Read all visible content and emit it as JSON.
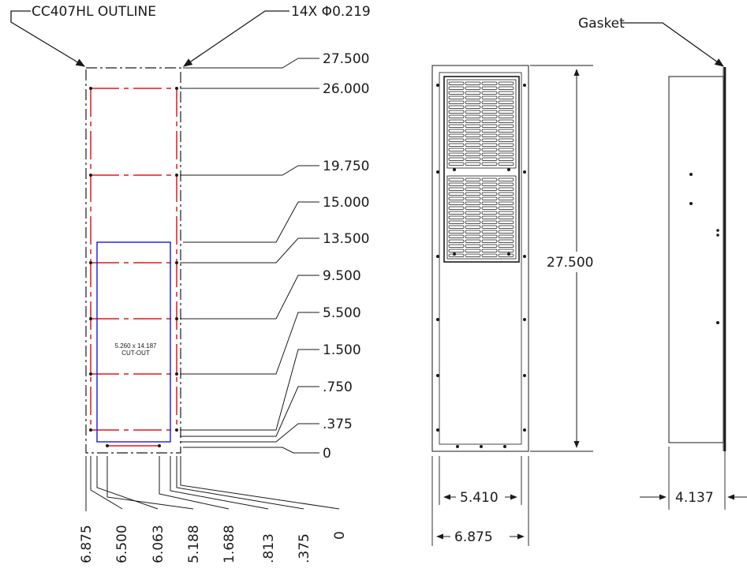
{
  "callouts": {
    "outline": "CC407HL OUTLINE",
    "holes": "14X Φ0.219",
    "gasket": "Gasket",
    "cutout_size": "5.260 x 14.187",
    "cutout_word": "CUT-OUT"
  },
  "vertical_dims": [
    "27.500",
    "26.000",
    "19.750",
    "15.000",
    "13.500",
    "9.500",
    "5.500",
    "1.500",
    ".750",
    ".375",
    "0"
  ],
  "horizontal_dims": [
    "6.875",
    "6.500",
    "6.063",
    "5.188",
    "1.688",
    ".813",
    ".375",
    "0"
  ],
  "front_view": {
    "height": "27.500",
    "inner_width": "5.410",
    "outer_width": "6.875"
  },
  "side_view": {
    "depth": "4.137"
  },
  "colors": {
    "line": "#1a1a1a",
    "bolt_pattern": "#e0191e",
    "cutout": "#1a1ad8"
  }
}
